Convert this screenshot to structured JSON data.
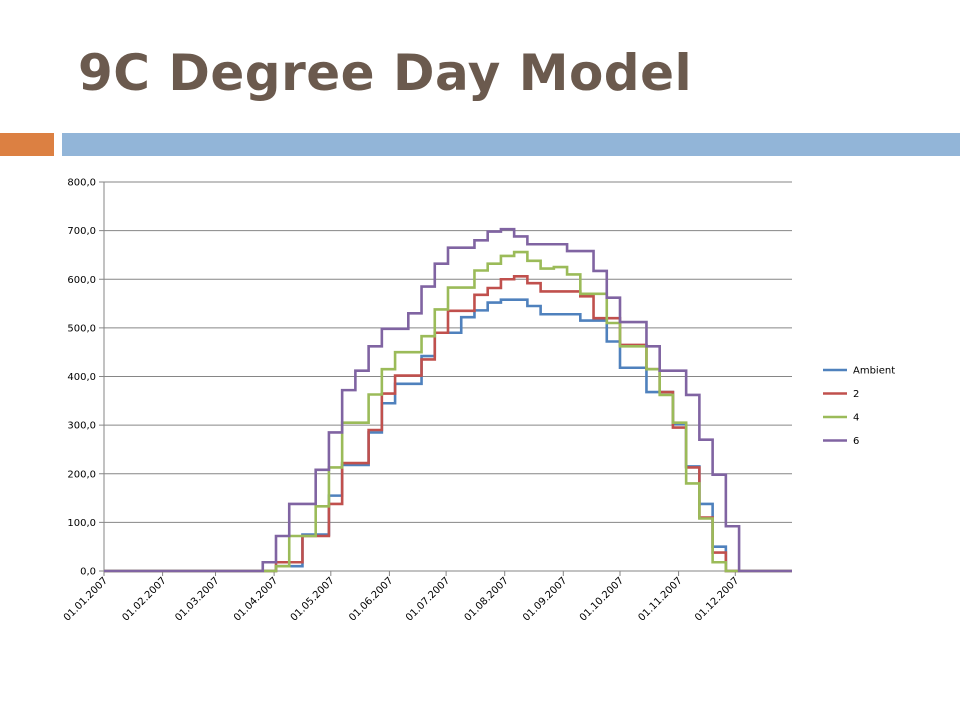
{
  "slide": {
    "title": "9C Degree Day Model"
  },
  "chart_data": {
    "type": "line",
    "step": true,
    "title": "",
    "xlabel": "",
    "ylabel": "",
    "ylim": [
      0,
      800
    ],
    "yticks": [
      "0,0",
      "100,0",
      "200,0",
      "300,0",
      "400,0",
      "500,0",
      "600,0",
      "700,0",
      "800,0"
    ],
    "grid": true,
    "legend_position": "right",
    "x_tick_labels": [
      "01.01.2007",
      "01.02.2007",
      "01.03.2007",
      "01.04.2007",
      "01.05.2007",
      "01.06.2007",
      "01.07.2007",
      "01.08.2007",
      "01.09.2007",
      "01.10.2007",
      "01.11.2007",
      "01.12.2007"
    ],
    "x_week_starts": [
      "01.01.2007",
      "08.01.2007",
      "15.01.2007",
      "22.01.2007",
      "29.01.2007",
      "05.02.2007",
      "12.02.2007",
      "19.02.2007",
      "26.02.2007",
      "05.03.2007",
      "12.03.2007",
      "19.03.2007",
      "26.03.2007",
      "02.04.2007",
      "09.04.2007",
      "16.04.2007",
      "23.04.2007",
      "30.04.2007",
      "07.05.2007",
      "14.05.2007",
      "21.05.2007",
      "28.05.2007",
      "04.06.2007",
      "11.06.2007",
      "18.06.2007",
      "25.06.2007",
      "02.07.2007",
      "09.07.2007",
      "16.07.2007",
      "23.07.2007",
      "30.07.2007",
      "06.08.2007",
      "13.08.2007",
      "20.08.2007",
      "27.08.2007",
      "03.09.2007",
      "10.09.2007",
      "17.09.2007",
      "24.09.2007",
      "01.10.2007",
      "08.10.2007",
      "15.10.2007",
      "22.10.2007",
      "29.10.2007",
      "05.11.2007",
      "12.11.2007",
      "19.11.2007",
      "26.11.2007",
      "03.12.2007",
      "10.12.2007",
      "17.12.2007",
      "24.12.2007",
      "31.12.2007"
    ],
    "x_end": "31.12.2007",
    "series": [
      {
        "name": "Ambient",
        "color": "#4f81bd",
        "values": [
          0,
          0,
          0,
          0,
          0,
          0,
          0,
          0,
          0,
          0,
          0,
          0,
          0,
          10,
          10,
          75,
          75,
          155,
          218,
          218,
          285,
          345,
          385,
          385,
          442,
          490,
          490,
          522,
          536,
          552,
          558,
          558,
          545,
          528,
          528,
          528,
          515,
          515,
          472,
          418,
          418,
          368,
          368,
          302,
          215,
          138,
          50,
          0,
          0,
          0,
          0,
          0,
          0
        ]
      },
      {
        "name": "2",
        "color": "#c0504d",
        "values": [
          0,
          0,
          0,
          0,
          0,
          0,
          0,
          0,
          0,
          0,
          0,
          0,
          0,
          18,
          18,
          72,
          72,
          138,
          222,
          222,
          290,
          365,
          402,
          402,
          435,
          490,
          535,
          535,
          568,
          582,
          600,
          606,
          592,
          575,
          575,
          575,
          565,
          520,
          520,
          465,
          465,
          415,
          368,
          295,
          213,
          110,
          38,
          0,
          0,
          0,
          0,
          0,
          0
        ]
      },
      {
        "name": "4",
        "color": "#9bbb59",
        "values": [
          0,
          0,
          0,
          0,
          0,
          0,
          0,
          0,
          0,
          0,
          0,
          0,
          0,
          10,
          72,
          72,
          133,
          213,
          305,
          305,
          363,
          415,
          450,
          450,
          483,
          538,
          583,
          583,
          618,
          632,
          648,
          656,
          638,
          622,
          625,
          610,
          570,
          570,
          510,
          462,
          462,
          415,
          362,
          305,
          180,
          108,
          18,
          0,
          0,
          0,
          0,
          0,
          0
        ]
      },
      {
        "name": "6",
        "color": "#8064a2",
        "values": [
          0,
          0,
          0,
          0,
          0,
          0,
          0,
          0,
          0,
          0,
          0,
          0,
          18,
          72,
          138,
          138,
          208,
          285,
          372,
          412,
          462,
          498,
          498,
          530,
          585,
          632,
          665,
          665,
          680,
          698,
          703,
          688,
          672,
          672,
          672,
          658,
          658,
          617,
          562,
          512,
          512,
          462,
          412,
          412,
          362,
          270,
          198,
          92,
          0,
          0,
          0,
          0,
          0
        ]
      }
    ]
  }
}
